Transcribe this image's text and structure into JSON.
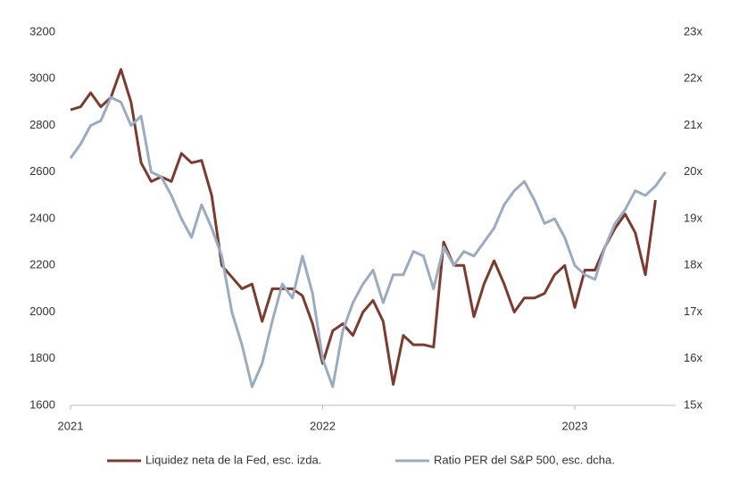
{
  "chart_data": {
    "type": "line",
    "x": [
      2021,
      2021.04,
      2021.08,
      2021.12,
      2021.16,
      2021.2,
      2021.24,
      2021.28,
      2021.32,
      2021.36,
      2021.4,
      2021.44,
      2021.48,
      2021.52,
      2021.56,
      2021.6,
      2021.64,
      2021.68,
      2021.72,
      2021.76,
      2021.8,
      2021.84,
      2021.88,
      2021.92,
      2021.96,
      2022,
      2022.04,
      2022.08,
      2022.12,
      2022.16,
      2022.2,
      2022.24,
      2022.28,
      2022.32,
      2022.36,
      2022.4,
      2022.44,
      2022.48,
      2022.52,
      2022.56,
      2022.6,
      2022.64,
      2022.68,
      2022.72,
      2022.76,
      2022.8,
      2022.84,
      2022.88,
      2022.92,
      2022.96,
      2023,
      2023.04,
      2023.08,
      2023.12,
      2023.16,
      2023.2,
      2023.24,
      2023.28,
      2023.32,
      2023.36
    ],
    "series": [
      {
        "name": "Liquidez neta de la Fed, esc. izda.",
        "color": "#7b3b2e",
        "values": [
          2867,
          2880,
          2940,
          2880,
          2920,
          3040,
          2900,
          2640,
          2560,
          2580,
          2560,
          2680,
          2640,
          2650,
          2500,
          2200,
          2150,
          2100,
          2120,
          1960,
          2100,
          2100,
          2100,
          2070,
          1950,
          1780,
          1920,
          1950,
          1900,
          2000,
          2050,
          1960,
          1690,
          1900,
          1860,
          1860,
          1850,
          2300,
          2200,
          2200,
          1980,
          2120,
          2220,
          2120,
          2000,
          2060,
          2060,
          2080,
          2160,
          2200,
          2020,
          2180,
          2180,
          2280,
          2360,
          2420,
          2340,
          2160,
          2480,
          null
        ]
      },
      {
        "name": "Ratio PER del S&P 500, esc. dcha.",
        "color": "#9aabc2",
        "axis": "y2",
        "values": [
          20.3,
          20.6,
          21.0,
          21.1,
          21.6,
          21.5,
          21.0,
          21.2,
          20.0,
          19.9,
          19.5,
          19.0,
          18.6,
          19.3,
          18.8,
          18.2,
          17.0,
          16.3,
          15.4,
          15.9,
          16.8,
          17.6,
          17.3,
          18.2,
          17.4,
          16.0,
          15.4,
          16.6,
          17.2,
          17.6,
          17.9,
          17.2,
          17.8,
          17.8,
          18.3,
          18.2,
          17.5,
          18.4,
          18.0,
          18.3,
          18.2,
          18.5,
          18.8,
          19.3,
          19.6,
          19.8,
          19.4,
          18.9,
          19.0,
          18.6,
          18.0,
          17.8,
          17.7,
          18.4,
          18.9,
          19.2,
          19.6,
          19.5,
          19.7,
          20.0
        ]
      }
    ],
    "xlim": [
      2021,
      2023.4
    ],
    "xticks": [
      2021,
      2022,
      2023
    ],
    "ylim": [
      1600,
      3200
    ],
    "yticks": [
      1600,
      1800,
      2000,
      2200,
      2400,
      2600,
      2800,
      3000,
      3200
    ],
    "y2lim": [
      15,
      23
    ],
    "y2ticks": [
      {
        "value": 15,
        "label": "15x"
      },
      {
        "value": 16,
        "label": "16x"
      },
      {
        "value": 17,
        "label": "17x"
      },
      {
        "value": 18,
        "label": "18x"
      },
      {
        "value": 19,
        "label": "19x"
      },
      {
        "value": 20,
        "label": "20x"
      },
      {
        "value": 21,
        "label": "21x"
      },
      {
        "value": 22,
        "label": "22x"
      },
      {
        "value": 23,
        "label": "23x"
      }
    ],
    "legend": "bottom"
  }
}
